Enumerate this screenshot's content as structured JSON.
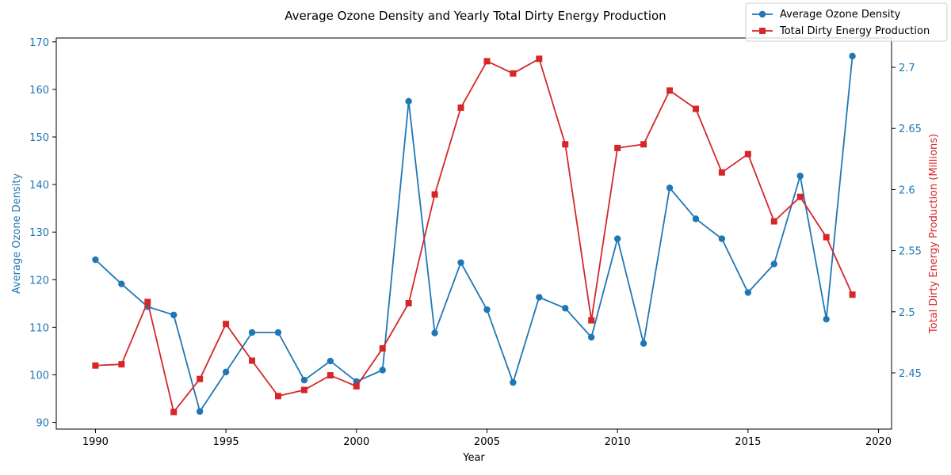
{
  "chart_data": {
    "type": "line",
    "title": "Average Ozone Density and Yearly Total Dirty Energy Production",
    "xlabel": "Year",
    "ylabel_left": "Average Ozone Density",
    "ylabel_right": "Total Dirty Energy Production (Millions)",
    "x": [
      1990,
      1991,
      1992,
      1993,
      1994,
      1995,
      1996,
      1997,
      1998,
      1999,
      2000,
      2001,
      2002,
      2003,
      2004,
      2005,
      2006,
      2007,
      2008,
      2009,
      2010,
      2011,
      2012,
      2013,
      2014,
      2015,
      2016,
      2017,
      2018,
      2019
    ],
    "x_ticks": [
      1990,
      1995,
      2000,
      2005,
      2010,
      2015,
      2020
    ],
    "xlim": [
      1988.5,
      2020.5
    ],
    "y_left_ticks": [
      90,
      100,
      110,
      120,
      130,
      140,
      150,
      160,
      170
    ],
    "ylim_left": [
      88.6,
      170.8
    ],
    "y_right_ticks": [
      2.45,
      2.5,
      2.55,
      2.6,
      2.65,
      2.7
    ],
    "y_right_tick_labels": [
      "2.45",
      "2.5",
      "2.55",
      "2.6",
      "2.65",
      "2.7"
    ],
    "ylim_right": [
      2.404,
      2.724
    ],
    "series": [
      {
        "name": "Average Ozone Density",
        "axis": "left",
        "color": "#1f77b4",
        "marker": "circle",
        "values": [
          124.2,
          119.1,
          114.3,
          112.6,
          92.3,
          100.6,
          108.9,
          108.9,
          98.9,
          102.9,
          98.6,
          101.0,
          157.5,
          108.8,
          123.6,
          113.7,
          98.4,
          116.3,
          114.0,
          107.9,
          128.6,
          106.6,
          139.3,
          132.8,
          128.6,
          117.3,
          123.3,
          141.8,
          111.7,
          167.0
        ]
      },
      {
        "name": "Total Dirty Energy Production",
        "axis": "right",
        "color": "#d62728",
        "marker": "square",
        "values": [
          2.456,
          2.457,
          2.508,
          2.418,
          2.445,
          2.49,
          2.46,
          2.431,
          2.436,
          2.448,
          2.439,
          2.47,
          2.507,
          2.596,
          2.667,
          2.705,
          2.695,
          2.707,
          2.637,
          2.493,
          2.634,
          2.637,
          2.681,
          2.666,
          2.614,
          2.629,
          2.574,
          2.594,
          2.561,
          2.514
        ]
      }
    ],
    "legend_position": "top-right",
    "grid": false
  }
}
